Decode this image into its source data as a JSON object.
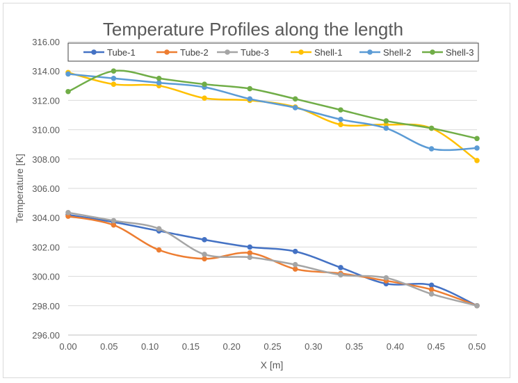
{
  "chart_data": {
    "type": "line",
    "title": "Temperature Profiles along the length",
    "xlabel": "X [m]",
    "ylabel": "Temperature [K]",
    "xlim": [
      0,
      0.5
    ],
    "ylim": [
      296,
      316
    ],
    "x_ticks": [
      "0.00",
      "0.05",
      "0.10",
      "0.15",
      "0.20",
      "0.25",
      "0.30",
      "0.35",
      "0.40",
      "0.45",
      "0.50"
    ],
    "y_ticks": [
      "296.00",
      "298.00",
      "300.00",
      "302.00",
      "304.00",
      "306.00",
      "308.00",
      "310.00",
      "312.00",
      "314.00",
      "316.00"
    ],
    "grid": "horizontal",
    "legend": "top",
    "x": [
      0.0,
      0.0556,
      0.1111,
      0.1667,
      0.2222,
      0.2778,
      0.3333,
      0.3889,
      0.4444,
      0.5
    ],
    "series": [
      {
        "name": "Tube-1",
        "color": "#4472c4",
        "values": [
          304.2,
          303.7,
          303.1,
          302.5,
          302.0,
          301.7,
          300.6,
          299.5,
          299.4,
          298.0
        ]
      },
      {
        "name": "Tube-2",
        "color": "#ed7d31",
        "values": [
          304.1,
          303.5,
          301.8,
          301.2,
          301.6,
          300.5,
          300.2,
          299.7,
          299.1,
          298.0
        ]
      },
      {
        "name": "Tube-3",
        "color": "#a5a5a5",
        "values": [
          304.35,
          303.8,
          303.25,
          301.5,
          301.3,
          300.8,
          300.1,
          299.9,
          298.8,
          298.0
        ]
      },
      {
        "name": "Shell-1",
        "color": "#ffc000",
        "values": [
          313.9,
          313.1,
          313.0,
          312.15,
          312.0,
          311.55,
          310.35,
          310.35,
          310.1,
          307.9
        ]
      },
      {
        "name": "Shell-2",
        "color": "#5b9bd5",
        "values": [
          313.8,
          313.5,
          313.2,
          312.9,
          312.1,
          311.5,
          310.7,
          310.1,
          308.7,
          308.75
        ]
      },
      {
        "name": "Shell-3",
        "color": "#70ad47",
        "values": [
          312.6,
          314.0,
          313.5,
          313.1,
          312.8,
          312.1,
          311.35,
          310.6,
          310.1,
          309.4
        ]
      }
    ]
  }
}
